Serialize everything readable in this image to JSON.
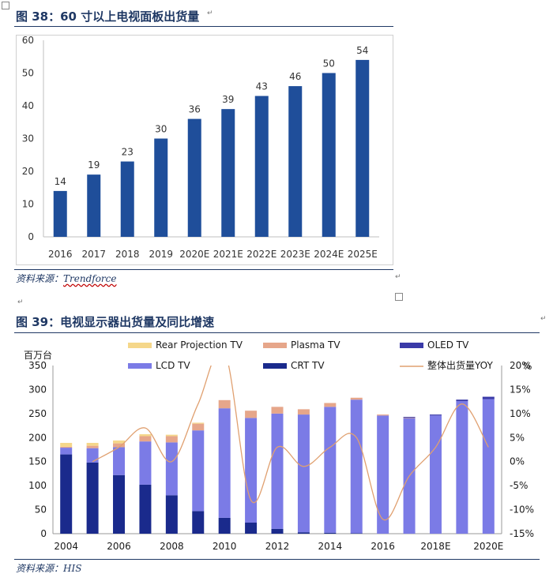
{
  "fig1": {
    "title": "图 38：60 寸以上电视面板出货量",
    "source_prefix": "资料来源：",
    "source_name": "Trendforce"
  },
  "fig2": {
    "title": "图 39：电视显示器出货量及同比增速",
    "source_prefix": "资料来源：",
    "source_name": "HIS"
  },
  "colors": {
    "bar1": "#1f4e9a",
    "lcd": "#7b7be6",
    "crt": "#1a2a8c",
    "oled": "#3a3aa8",
    "plasma": "#e6a68a",
    "rear": "#f5d78a",
    "yoy": "#e0a070",
    "title": "#1f3864"
  },
  "chart_data": [
    {
      "type": "bar",
      "categories": [
        "2016",
        "2017",
        "2018",
        "2019",
        "2020E",
        "2021E",
        "2022E",
        "2023E",
        "2024E",
        "2025E"
      ],
      "values": [
        14,
        19,
        23,
        30,
        36,
        39,
        43,
        46,
        50,
        54
      ],
      "data_labels": [
        "14",
        "19",
        "23",
        "30",
        "36",
        "39",
        "43",
        "46",
        "50",
        "54"
      ],
      "ylim": [
        0,
        60
      ],
      "yticks": [
        "0",
        "10",
        "20",
        "30",
        "40",
        "50",
        "60"
      ],
      "grid": false
    },
    {
      "type": "bar",
      "stacked": true,
      "x": [
        "2004",
        "2005",
        "2006",
        "2007",
        "2008",
        "2009",
        "2010",
        "2011",
        "2012",
        "2013",
        "2014",
        "2015",
        "2016",
        "2017",
        "2018E",
        "2019E",
        "2020E"
      ],
      "xtick_labels": [
        "2004",
        "2006",
        "2008",
        "2010",
        "2012",
        "2014",
        "2016",
        "2018E",
        "2020E"
      ],
      "ylabel": "百万台",
      "ylim": [
        0,
        350
      ],
      "yticks": [
        "0",
        "50",
        "100",
        "150",
        "200",
        "250",
        "300",
        "350"
      ],
      "y2label": "%",
      "y2lim": [
        -15,
        20
      ],
      "y2ticks": [
        "-15%",
        "-10%",
        "-5%",
        "0%",
        "5%",
        "10%",
        "15%",
        "20%"
      ],
      "legend": [
        "Rear Projection TV",
        "Plasma TV",
        "OLED TV",
        "LCD TV",
        "CRT TV",
        "整体出货量YOY"
      ],
      "series": [
        {
          "name": "CRT TV",
          "values": [
            165,
            148,
            122,
            102,
            80,
            47,
            33,
            23,
            10,
            3,
            2,
            1,
            0,
            0,
            0,
            0,
            0
          ]
        },
        {
          "name": "LCD TV",
          "values": [
            14,
            30,
            58,
            90,
            110,
            168,
            228,
            218,
            240,
            245,
            262,
            278,
            246,
            240,
            246,
            276,
            280
          ]
        },
        {
          "name": "Plasma TV",
          "values": [
            2,
            5,
            8,
            11,
            13,
            14,
            17,
            15,
            14,
            11,
            8,
            4,
            2,
            1,
            0,
            0,
            0
          ]
        },
        {
          "name": "Rear Projection TV",
          "values": [
            8,
            6,
            6,
            4,
            3,
            2,
            0,
            0,
            0,
            0,
            0,
            0,
            0,
            0,
            0,
            0,
            0
          ]
        },
        {
          "name": "OLED TV",
          "values": [
            0,
            0,
            0,
            0,
            0,
            0,
            0,
            0,
            0,
            0,
            0,
            0,
            0,
            2,
            2,
            3,
            5
          ]
        }
      ],
      "line_series": {
        "name": "整体出货量YOY",
        "values": [
          null,
          0,
          3,
          7,
          0,
          12,
          23,
          -8,
          3,
          -1,
          3,
          5,
          -12,
          -3,
          3,
          12,
          3
        ]
      }
    }
  ]
}
